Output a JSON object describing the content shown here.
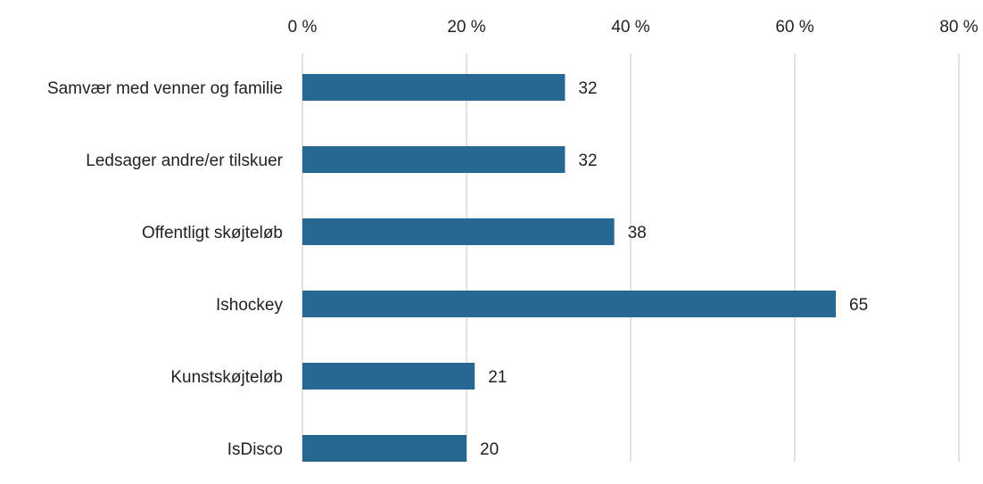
{
  "chart_data": {
    "type": "bar",
    "orientation": "horizontal",
    "categories": [
      "Samvær med venner og familie",
      "Ledsager andre/er tilskuer",
      "Offentligt skøjteløb",
      "Ishockey",
      "Kunstskøjteløb",
      "IsDisco"
    ],
    "values": [
      32,
      32,
      38,
      65,
      21,
      20
    ],
    "data_labels": [
      "32",
      "32",
      "38",
      "65",
      "21",
      "20"
    ],
    "xlim": [
      0,
      80
    ],
    "xticks": [
      0,
      20,
      40,
      60,
      80
    ],
    "xtick_labels": [
      "0 %",
      "20 %",
      "40 %",
      "60 %",
      "80 %"
    ],
    "x_axis_position": "top",
    "grid": "vertical",
    "legend": "none",
    "title": "",
    "xlabel": "",
    "ylabel": "",
    "colors": {
      "bar": "#266891",
      "grid": "#d9d9d9",
      "text": "#222222"
    }
  }
}
